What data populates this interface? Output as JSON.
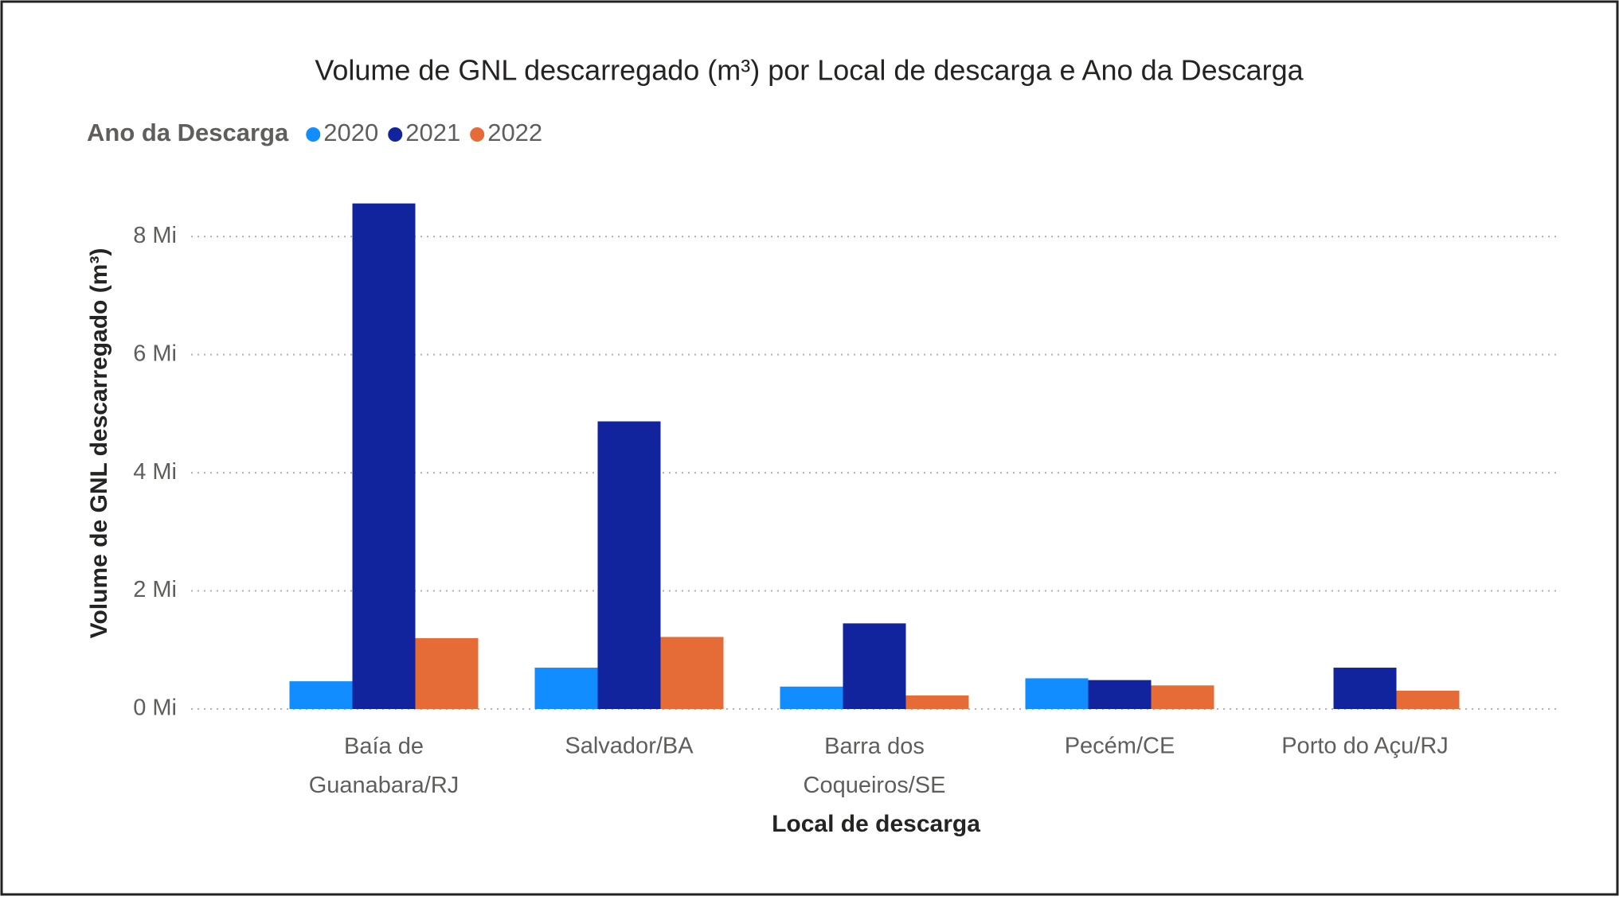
{
  "chart_data": {
    "type": "bar",
    "title": "Volume de GNL descarregado (m³) por Local de descarga e Ano da Descarga",
    "legend_title": "Ano da Descarga",
    "x_label": "Local de descarga",
    "y_label": "Volume de GNL descarregado (m³)",
    "categories": [
      "Baía de Guanabara/RJ",
      "Salvador/BA",
      "Barra dos Coqueiros/SE",
      "Pecém/CE",
      "Porto do Açu/RJ"
    ],
    "series": [
      {
        "name": "2020",
        "color": "#118dff",
        "values": [
          470000,
          700000,
          380000,
          520000,
          null
        ]
      },
      {
        "name": "2021",
        "color": "#12239e",
        "values": [
          8560000,
          4870000,
          1450000,
          490000,
          700000
        ]
      },
      {
        "name": "2022",
        "color": "#e66c37",
        "values": [
          1200000,
          1220000,
          230000,
          400000,
          310000
        ]
      }
    ],
    "ylim": [
      0,
      9000000
    ],
    "yticks": [
      {
        "value": 0,
        "label": "0 Mi"
      },
      {
        "value": 2000000,
        "label": "2 Mi"
      },
      {
        "value": 4000000,
        "label": "4 Mi"
      },
      {
        "value": 6000000,
        "label": "6 Mi"
      },
      {
        "value": 8000000,
        "label": "8 Mi"
      }
    ],
    "grid": true,
    "legend": "top-left"
  }
}
